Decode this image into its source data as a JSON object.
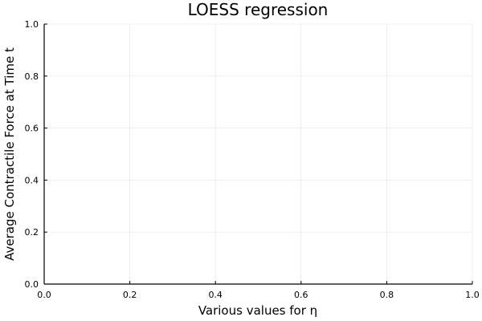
{
  "chart_data": {
    "type": "line",
    "title": "LOESS regression",
    "xlabel": "Various values for η",
    "ylabel": "Average Contractile Force at Time t",
    "xlim": [
      0.0,
      1.0
    ],
    "ylim": [
      0.0,
      1.0
    ],
    "xticks": [
      0.0,
      0.2,
      0.4,
      0.6,
      0.8,
      1.0
    ],
    "yticks": [
      0.0,
      0.2,
      0.4,
      0.6,
      0.8,
      1.0
    ],
    "xtick_labels": [
      "0.0",
      "0.2",
      "0.4",
      "0.6",
      "0.8",
      "1.0"
    ],
    "ytick_labels": [
      "0.0",
      "0.2",
      "0.4",
      "0.6",
      "0.8",
      "1.0"
    ],
    "grid": true,
    "series": []
  }
}
